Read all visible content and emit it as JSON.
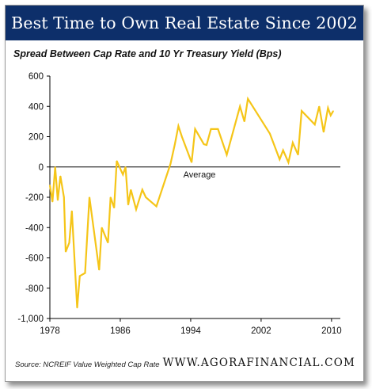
{
  "header": {
    "title": "Best Time to Own Real Estate Since 2002"
  },
  "footer": {
    "source": "Source: NCREIF Value Weighted Cap Rate",
    "website": "WWW.AGORAFINANCIAL.COM"
  },
  "colors": {
    "title_bg": "#0d2f6a",
    "line": "#f5c518",
    "axis": "#000000"
  },
  "chart_data": {
    "type": "line",
    "title": "Spread Between Cap Rate and 10 Yr Treasury Yield (Bps)",
    "xlabel": "",
    "ylabel": "",
    "xlim": [
      1978,
      2011
    ],
    "ylim": [
      -1000,
      600
    ],
    "x_ticks": [
      1978,
      1986,
      1994,
      2002,
      2010
    ],
    "y_ticks": [
      600,
      400,
      200,
      0,
      -200,
      -400,
      -600,
      -800,
      -1000
    ],
    "y_tick_labels": [
      "600",
      "400",
      "200",
      "0",
      "-200",
      "-400",
      "-600",
      "-800",
      "-1,000"
    ],
    "reference_line": {
      "value": 0,
      "label": "Average"
    },
    "grid": false,
    "series": [
      {
        "x": [
          1978.0,
          1978.3,
          1978.6,
          1978.9,
          1979.2,
          1979.6,
          1979.8,
          1980.2,
          1980.5,
          1981.1,
          1981.4,
          1982.0,
          1982.5,
          1983.6,
          1983.9,
          1984.6,
          1984.9,
          1985.3,
          1985.6,
          1985.9,
          1986.3,
          1986.6,
          1986.9,
          1987.2,
          1987.8,
          1988.5,
          1988.9,
          1990.1,
          1991.7,
          1992.2,
          1992.6,
          1993.0,
          1994.1,
          1994.5,
          1995.5,
          1995.8,
          1996.3,
          1996.7,
          1997.1,
          1998.1,
          1999.6,
          2000.1,
          2000.5,
          2003.0,
          2004.1,
          2004.5,
          2005.1,
          2005.6,
          2006.2,
          2006.6,
          2008.1,
          2008.6,
          2009.1,
          2009.6,
          2009.9,
          2010.2
        ],
        "y": [
          -120,
          -230,
          0,
          -220,
          -60,
          -200,
          -560,
          -500,
          -290,
          -930,
          -720,
          -700,
          -200,
          -680,
          -400,
          -500,
          -200,
          -270,
          40,
          0,
          -50,
          0,
          -250,
          -150,
          -280,
          -150,
          -200,
          -260,
          20,
          150,
          270,
          200,
          30,
          250,
          150,
          145,
          250,
          250,
          250,
          80,
          400,
          300,
          450,
          220,
          50,
          110,
          30,
          160,
          80,
          370,
          280,
          400,
          230,
          390,
          340,
          370
        ]
      }
    ]
  }
}
